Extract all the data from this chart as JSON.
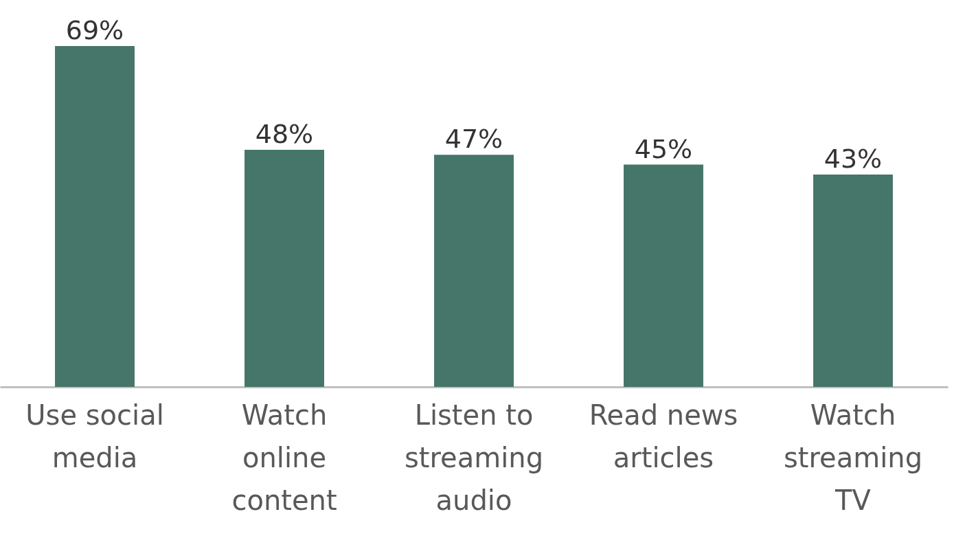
{
  "chart_data": {
    "type": "bar",
    "categories": [
      "Use social media",
      "Watch online content",
      "Listen to streaming audio",
      "Read news articles",
      "Watch streaming TV"
    ],
    "values": [
      69,
      48,
      47,
      45,
      43
    ],
    "value_labels": [
      "69%",
      "48%",
      "47%",
      "45%",
      "43%"
    ],
    "color": "#46756a"
  }
}
